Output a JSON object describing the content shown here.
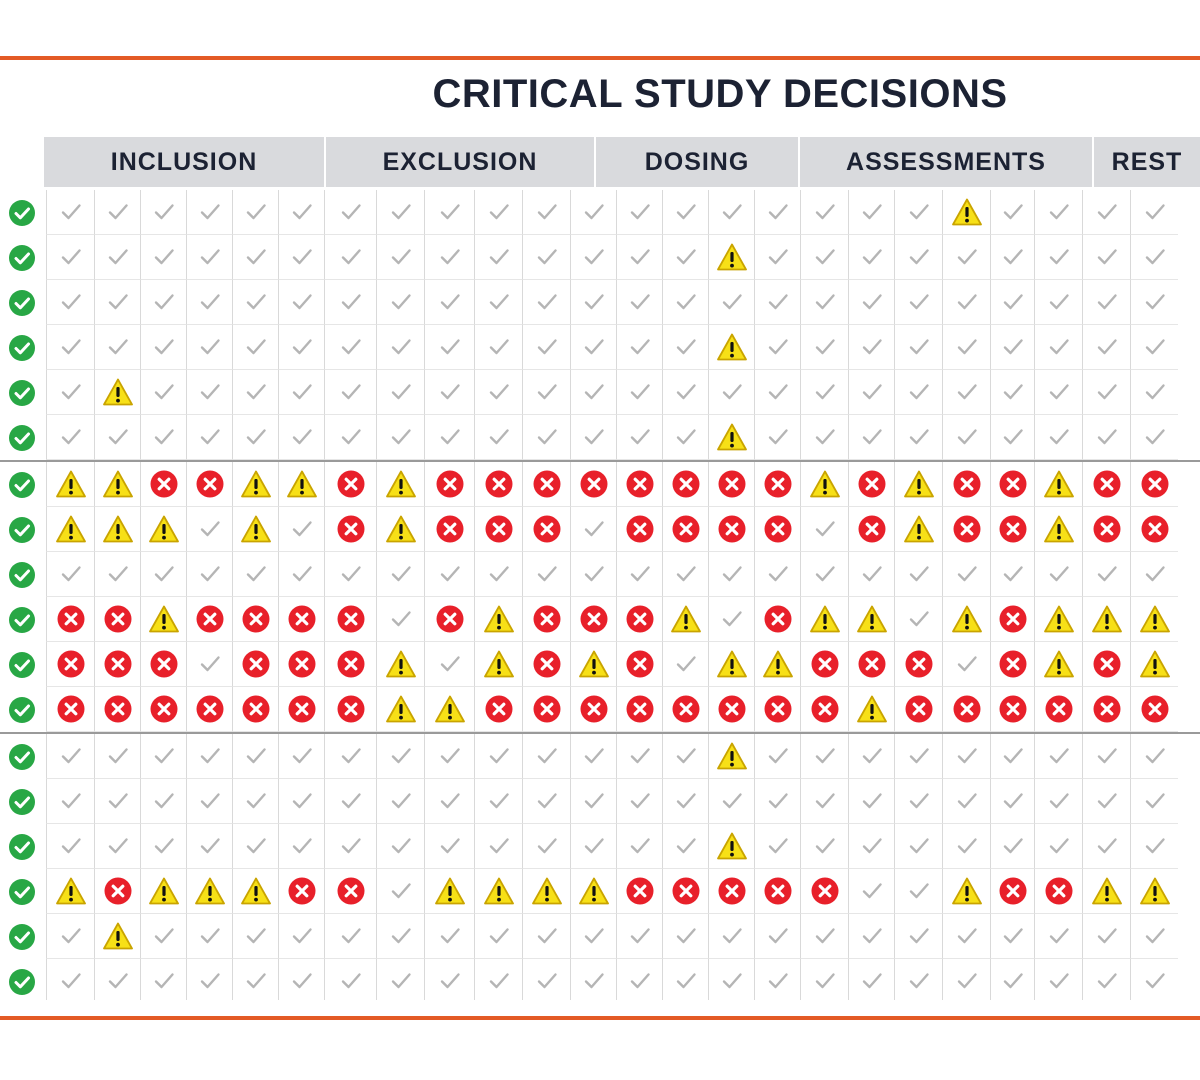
{
  "title": "CRITICAL STUDY DECISIONS",
  "colors": {
    "frame": "#e35a25",
    "title": "#1c2233",
    "header_bg": "#d9dadd",
    "ok_green": "#28a745",
    "check_gray": "#b5b5b5",
    "warn_yellow": "#f7e017",
    "error_red": "#e8202a"
  },
  "icons": {
    "row_status": "circle-check-icon",
    "ok": "check-icon",
    "warning": "warning-triangle-icon",
    "error": "circle-x-icon"
  },
  "legend": {
    "c": "check",
    "w": "warning",
    "x": "error"
  },
  "headers": [
    {
      "label": "INCLUSION",
      "span": 6
    },
    {
      "label": "EXCLUSION",
      "span": 6
    },
    {
      "label": "DOSING",
      "span": 4
    },
    {
      "label": "ASSESSMENTS",
      "span": 6
    },
    {
      "label": "REST",
      "span": 2
    }
  ],
  "row_groups": [
    6,
    6,
    6
  ],
  "rows": [
    {
      "status": "check",
      "cells": "cccccccccccccccccccwcccc"
    },
    {
      "status": "check",
      "cells": "ccccccccccccccwccccccccc"
    },
    {
      "status": "check",
      "cells": "cccccccccccccccccccccccc"
    },
    {
      "status": "check",
      "cells": "ccccccccccccccwccccccccc"
    },
    {
      "status": "check",
      "cells": "cwcccccccccccccccccccccc"
    },
    {
      "status": "check",
      "cells": "ccccccccccccccwccccccccc"
    },
    {
      "status": "check",
      "cells": "wwxxwwxwxxxxxxxxwxwxxwxx"
    },
    {
      "status": "check",
      "cells": "wwwcwcxwxxxcxxxxcxwxxwxx"
    },
    {
      "status": "check",
      "cells": "cccccccccccccccccccccccc"
    },
    {
      "status": "check",
      "cells": "xxwxxxxcxwxxxwcxwwcwxwww"
    },
    {
      "status": "check",
      "cells": "xxxcxxxwcwxwxcwwxxxcxwxw"
    },
    {
      "status": "check",
      "cells": "xxxxxxxwwxxxxxxxxwxxxxxx"
    },
    {
      "status": "check",
      "cells": "ccccccccccccccwccccccccc"
    },
    {
      "status": "check",
      "cells": "cccccccccccccccccccccccc"
    },
    {
      "status": "check",
      "cells": "ccccccccccccccwccccccccc"
    },
    {
      "status": "check",
      "cells": "wxwwwxxcwwwwxxxxxccwxxww"
    },
    {
      "status": "check",
      "cells": "cwcccccccccccccccccccccc"
    },
    {
      "status": "check",
      "cells": "cccccccccccccccccccccccc"
    }
  ]
}
